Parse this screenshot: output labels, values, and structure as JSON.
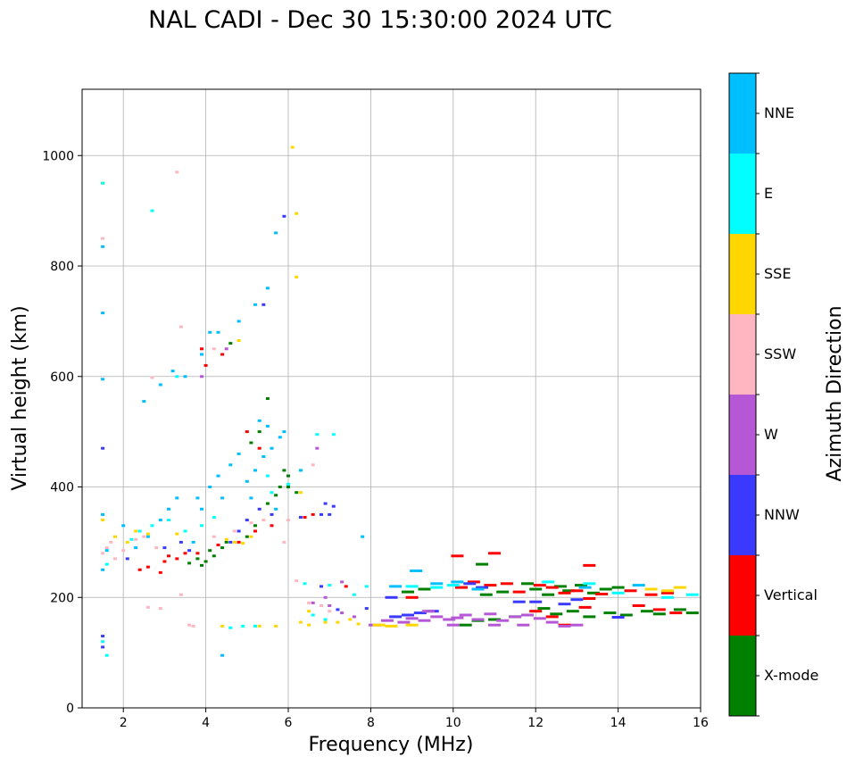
{
  "chart_data": {
    "type": "scatter",
    "title": "NAL CADI - Dec 30 15:30:00 2024 UTC",
    "xlabel": "Frequency (MHz)",
    "ylabel": "Virtual height (km)",
    "xlim": [
      1,
      16
    ],
    "ylim": [
      0,
      1120
    ],
    "xticks": [
      2,
      4,
      6,
      8,
      10,
      12,
      14,
      16
    ],
    "yticks": [
      0,
      200,
      400,
      600,
      800,
      1000
    ],
    "grid": true,
    "colorbar": {
      "label": "Azimuth Direction",
      "categories": [
        {
          "name": "X-mode",
          "color": "#008000"
        },
        {
          "name": "Vertical",
          "color": "#ff0000"
        },
        {
          "name": "NNW",
          "color": "#3a3aff"
        },
        {
          "name": "W",
          "color": "#b657d6"
        },
        {
          "name": "SSW",
          "color": "#ffb6c1"
        },
        {
          "name": "SSE",
          "color": "#ffd700"
        },
        {
          "name": "E",
          "color": "#00ffff"
        },
        {
          "name": "NNE",
          "color": "#00bfff"
        }
      ]
    },
    "series": [
      {
        "name": "X-mode",
        "points": [
          [
            3.8,
            270
          ],
          [
            3.9,
            258
          ],
          [
            4.0,
            265
          ],
          [
            4.1,
            285
          ],
          [
            4.2,
            275
          ],
          [
            3.6,
            262
          ],
          [
            4.4,
            290
          ],
          [
            4.5,
            300
          ],
          [
            5.0,
            310
          ],
          [
            5.2,
            330
          ],
          [
            5.5,
            370
          ],
          [
            5.7,
            385
          ],
          [
            5.8,
            400
          ],
          [
            5.1,
            480
          ],
          [
            5.3,
            500
          ],
          [
            6.0,
            400
          ],
          [
            6.2,
            390
          ],
          [
            8.9,
            210
          ],
          [
            9.3,
            215
          ],
          [
            10.7,
            260
          ],
          [
            10.8,
            205
          ],
          [
            11.2,
            210
          ],
          [
            11.8,
            225
          ],
          [
            12.0,
            215
          ],
          [
            12.3,
            205
          ],
          [
            12.6,
            220
          ],
          [
            12.8,
            212
          ],
          [
            13.1,
            222
          ],
          [
            13.4,
            208
          ],
          [
            13.7,
            215
          ],
          [
            14.0,
            218
          ],
          [
            12.2,
            180
          ],
          [
            12.5,
            170
          ],
          [
            12.9,
            175
          ],
          [
            13.3,
            165
          ],
          [
            13.8,
            172
          ],
          [
            14.2,
            168
          ],
          [
            14.7,
            175
          ],
          [
            15.0,
            170
          ],
          [
            15.5,
            178
          ],
          [
            15.8,
            172
          ],
          [
            11.0,
            160
          ],
          [
            11.5,
            165
          ],
          [
            10.3,
            150
          ],
          [
            10.6,
            158
          ],
          [
            4.6,
            660
          ],
          [
            5.5,
            560
          ],
          [
            6.0,
            420
          ],
          [
            5.9,
            430
          ]
        ]
      },
      {
        "name": "Vertical",
        "points": [
          [
            2.4,
            250
          ],
          [
            2.6,
            255
          ],
          [
            3.0,
            265
          ],
          [
            3.1,
            275
          ],
          [
            3.3,
            270
          ],
          [
            3.5,
            280
          ],
          [
            2.9,
            245
          ],
          [
            4.3,
            295
          ],
          [
            4.8,
            300
          ],
          [
            5.2,
            320
          ],
          [
            5.6,
            330
          ],
          [
            6.4,
            345
          ],
          [
            6.6,
            350
          ],
          [
            4.0,
            620
          ],
          [
            3.9,
            650
          ],
          [
            4.4,
            640
          ],
          [
            5.0,
            500
          ],
          [
            5.3,
            470
          ],
          [
            3.8,
            280
          ],
          [
            9.0,
            200
          ],
          [
            10.2,
            218
          ],
          [
            10.5,
            228
          ],
          [
            10.9,
            222
          ],
          [
            11.3,
            225
          ],
          [
            11.6,
            210
          ],
          [
            12.1,
            222
          ],
          [
            12.4,
            218
          ],
          [
            12.7,
            208
          ],
          [
            13.0,
            212
          ],
          [
            13.3,
            198
          ],
          [
            13.6,
            206
          ],
          [
            14.3,
            212
          ],
          [
            14.8,
            205
          ],
          [
            15.2,
            208
          ],
          [
            12.0,
            175
          ],
          [
            12.4,
            165
          ],
          [
            12.7,
            150
          ],
          [
            13.2,
            182
          ],
          [
            14.5,
            185
          ],
          [
            15.0,
            178
          ],
          [
            15.4,
            172
          ],
          [
            10.1,
            275
          ],
          [
            11.0,
            280
          ],
          [
            13.3,
            258
          ],
          [
            7.4,
            220
          ]
        ]
      },
      {
        "name": "NNW",
        "points": [
          [
            1.5,
            130
          ],
          [
            1.5,
            110
          ],
          [
            1.5,
            470
          ],
          [
            2.1,
            270
          ],
          [
            3.0,
            290
          ],
          [
            3.4,
            300
          ],
          [
            3.6,
            285
          ],
          [
            4.6,
            300
          ],
          [
            4.8,
            320
          ],
          [
            5.0,
            340
          ],
          [
            5.3,
            360
          ],
          [
            5.6,
            350
          ],
          [
            7.0,
            350
          ],
          [
            7.1,
            365
          ],
          [
            6.8,
            350
          ],
          [
            6.9,
            370
          ],
          [
            6.3,
            345
          ],
          [
            8.6,
            165
          ],
          [
            8.9,
            168
          ],
          [
            9.2,
            172
          ],
          [
            9.5,
            175
          ],
          [
            7.9,
            180
          ],
          [
            8.5,
            200
          ],
          [
            10.4,
            225
          ],
          [
            10.7,
            218
          ],
          [
            11.6,
            192
          ],
          [
            12.0,
            192
          ],
          [
            12.7,
            188
          ],
          [
            13.0,
            196
          ],
          [
            14.0,
            164
          ],
          [
            6.8,
            220
          ],
          [
            7.2,
            178
          ],
          [
            5.4,
            730
          ],
          [
            5.9,
            890
          ]
        ]
      },
      {
        "name": "W",
        "points": [
          [
            8.8,
            155
          ],
          [
            9.0,
            162
          ],
          [
            9.3,
            158
          ],
          [
            9.6,
            165
          ],
          [
            9.9,
            160
          ],
          [
            10.1,
            163
          ],
          [
            10.3,
            168
          ],
          [
            10.6,
            160
          ],
          [
            10.9,
            170
          ],
          [
            11.2,
            158
          ],
          [
            11.5,
            165
          ],
          [
            11.8,
            168
          ],
          [
            12.1,
            162
          ],
          [
            12.4,
            155
          ],
          [
            12.7,
            148
          ],
          [
            13.0,
            150
          ],
          [
            8.1,
            150
          ],
          [
            8.4,
            158
          ],
          [
            7.6,
            165
          ],
          [
            7.0,
            185
          ],
          [
            7.3,
            172
          ],
          [
            6.6,
            190
          ],
          [
            6.9,
            200
          ],
          [
            7.3,
            228
          ],
          [
            6.7,
            470
          ],
          [
            4.5,
            650
          ],
          [
            3.9,
            600
          ],
          [
            9.4,
            175
          ],
          [
            10.0,
            150
          ],
          [
            11.0,
            150
          ],
          [
            11.7,
            150
          ]
        ]
      },
      {
        "name": "SSW",
        "points": [
          [
            1.5,
            280
          ],
          [
            1.6,
            290
          ],
          [
            1.7,
            300
          ],
          [
            1.8,
            270
          ],
          [
            2.0,
            285
          ],
          [
            2.3,
            305
          ],
          [
            2.5,
            310
          ],
          [
            2.8,
            290
          ],
          [
            4.2,
            310
          ],
          [
            4.7,
            320
          ],
          [
            5.1,
            335
          ],
          [
            5.4,
            340
          ],
          [
            5.9,
            300
          ],
          [
            3.4,
            205
          ],
          [
            2.9,
            180
          ],
          [
            3.6,
            150
          ],
          [
            3.7,
            148
          ],
          [
            2.6,
            182
          ],
          [
            6.2,
            230
          ],
          [
            6.5,
            190
          ],
          [
            6.8,
            185
          ],
          [
            7.0,
            175
          ],
          [
            6.6,
            440
          ],
          [
            6.0,
            340
          ],
          [
            1.5,
            850
          ],
          [
            3.3,
            970
          ],
          [
            3.4,
            690
          ],
          [
            4.2,
            650
          ],
          [
            2.7,
            598
          ]
        ]
      },
      {
        "name": "SSE",
        "points": [
          [
            1.5,
            340
          ],
          [
            1.5,
            950
          ],
          [
            1.8,
            310
          ],
          [
            2.1,
            300
          ],
          [
            2.3,
            320
          ],
          [
            2.6,
            315
          ],
          [
            3.3,
            315
          ],
          [
            4.5,
            305
          ],
          [
            4.7,
            300
          ],
          [
            4.9,
            298
          ],
          [
            5.1,
            310
          ],
          [
            4.4,
            148
          ],
          [
            5.3,
            148
          ],
          [
            5.7,
            148
          ],
          [
            6.3,
            155
          ],
          [
            6.5,
            150
          ],
          [
            6.9,
            155
          ],
          [
            7.2,
            155
          ],
          [
            7.5,
            160
          ],
          [
            6.5,
            175
          ],
          [
            7.7,
            152
          ],
          [
            8.2,
            150
          ],
          [
            8.5,
            148
          ],
          [
            9.0,
            150
          ],
          [
            14.8,
            215
          ],
          [
            15.2,
            212
          ],
          [
            15.5,
            218
          ],
          [
            6.1,
            1015
          ],
          [
            6.2,
            895
          ],
          [
            6.2,
            780
          ],
          [
            6.3,
            390
          ],
          [
            4.8,
            665
          ]
        ]
      },
      {
        "name": "E",
        "points": [
          [
            1.5,
            120
          ],
          [
            1.6,
            95
          ],
          [
            1.5,
            950
          ],
          [
            1.6,
            260
          ],
          [
            2.2,
            305
          ],
          [
            2.4,
            320
          ],
          [
            2.7,
            330
          ],
          [
            3.1,
            340
          ],
          [
            3.5,
            320
          ],
          [
            3.9,
            330
          ],
          [
            4.2,
            345
          ],
          [
            5.5,
            420
          ],
          [
            6.0,
            405
          ],
          [
            6.3,
            430
          ],
          [
            6.7,
            495
          ],
          [
            7.1,
            495
          ],
          [
            5.6,
            390
          ],
          [
            6.4,
            225
          ],
          [
            7.0,
            222
          ],
          [
            7.6,
            205
          ],
          [
            7.9,
            220
          ],
          [
            4.6,
            145
          ],
          [
            4.9,
            148
          ],
          [
            5.2,
            148
          ],
          [
            6.6,
            168
          ],
          [
            6.9,
            160
          ],
          [
            9.0,
            220
          ],
          [
            9.6,
            218
          ],
          [
            10.0,
            222
          ],
          [
            12.3,
            228
          ],
          [
            13.3,
            225
          ],
          [
            14.0,
            208
          ],
          [
            15.2,
            200
          ],
          [
            15.8,
            205
          ],
          [
            2.7,
            900
          ],
          [
            3.3,
            600
          ]
        ]
      },
      {
        "name": "NNE",
        "points": [
          [
            1.5,
            595
          ],
          [
            1.5,
            835
          ],
          [
            1.5,
            715
          ],
          [
            1.5,
            350
          ],
          [
            1.5,
            250
          ],
          [
            1.6,
            285
          ],
          [
            2.0,
            330
          ],
          [
            2.3,
            290
          ],
          [
            2.6,
            310
          ],
          [
            2.9,
            340
          ],
          [
            3.1,
            360
          ],
          [
            3.3,
            380
          ],
          [
            3.7,
            300
          ],
          [
            3.8,
            380
          ],
          [
            4.1,
            400
          ],
          [
            4.3,
            420
          ],
          [
            4.6,
            440
          ],
          [
            4.8,
            460
          ],
          [
            5.0,
            410
          ],
          [
            5.2,
            430
          ],
          [
            5.4,
            455
          ],
          [
            5.6,
            470
          ],
          [
            5.8,
            490
          ],
          [
            5.9,
            500
          ],
          [
            5.3,
            520
          ],
          [
            5.5,
            510
          ],
          [
            5.1,
            380
          ],
          [
            5.7,
            360
          ],
          [
            2.5,
            555
          ],
          [
            2.9,
            585
          ],
          [
            3.2,
            610
          ],
          [
            3.5,
            600
          ],
          [
            3.9,
            640
          ],
          [
            4.1,
            680
          ],
          [
            4.3,
            680
          ],
          [
            4.8,
            700
          ],
          [
            5.2,
            730
          ],
          [
            5.5,
            760
          ],
          [
            5.7,
            860
          ],
          [
            6.3,
            430
          ],
          [
            7.8,
            310
          ],
          [
            8.6,
            220
          ],
          [
            9.1,
            248
          ],
          [
            9.6,
            225
          ],
          [
            10.1,
            228
          ],
          [
            10.6,
            215
          ],
          [
            13.2,
            218
          ],
          [
            14.5,
            222
          ],
          [
            4.4,
            95
          ],
          [
            3.9,
            360
          ],
          [
            4.4,
            380
          ]
        ]
      }
    ]
  }
}
